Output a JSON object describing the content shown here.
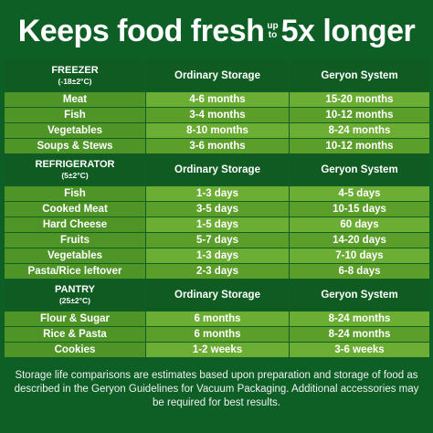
{
  "headline": {
    "part1": "Keeps food fresh",
    "up": "up",
    "to": "to",
    "part2": "5x longer"
  },
  "columns": {
    "ordinary": "Ordinary Storage",
    "geryon": "Geryon System"
  },
  "freezer": {
    "title": "FREEZER",
    "temp": "(-18±2°C)",
    "rows": [
      {
        "food": "Meat",
        "ordinary": "4-6 months",
        "geryon": "15-20 months"
      },
      {
        "food": "Fish",
        "ordinary": "3-4 months",
        "geryon": "10-12 months"
      },
      {
        "food": "Vegetables",
        "ordinary": "8-10 months",
        "geryon": "8-24 months"
      },
      {
        "food": "Soups & Stews",
        "ordinary": "3-6 months",
        "geryon": "10-12 months"
      }
    ]
  },
  "refrigerator": {
    "title": "REFRIGERATOR",
    "temp": "(5±2°C)",
    "rows": [
      {
        "food": "Fish",
        "ordinary": "1-3 days",
        "geryon": "4-5 days"
      },
      {
        "food": "Cooked Meat",
        "ordinary": "3-5 days",
        "geryon": "10-15 days"
      },
      {
        "food": "Hard Cheese",
        "ordinary": "1-5 days",
        "geryon": "60 days"
      },
      {
        "food": "Fruits",
        "ordinary": "5-7 days",
        "geryon": "14-20 days"
      },
      {
        "food": "Vegetables",
        "ordinary": "1-3 days",
        "geryon": "7-10 days"
      },
      {
        "food": "Pasta/Rice leftover",
        "ordinary": "2-3 days",
        "geryon": "6-8 days"
      }
    ]
  },
  "pantry": {
    "title": "PANTRY",
    "temp": "(25±2°C)",
    "rows": [
      {
        "food": "Flour & Sugar",
        "ordinary": "6 months",
        "geryon": "8-24 months"
      },
      {
        "food": "Rice & Pasta",
        "ordinary": "6 months",
        "geryon": "8-24 months"
      },
      {
        "food": "Cookies",
        "ordinary": "1-2 weeks",
        "geryon": "3-6 weeks"
      }
    ]
  },
  "footnote": "Storage life comparisons are estimates based upon preparation and storage of food as described in the Geryon Guidelines for Vacuum Packaging. Additional accessories may be required for best results."
}
